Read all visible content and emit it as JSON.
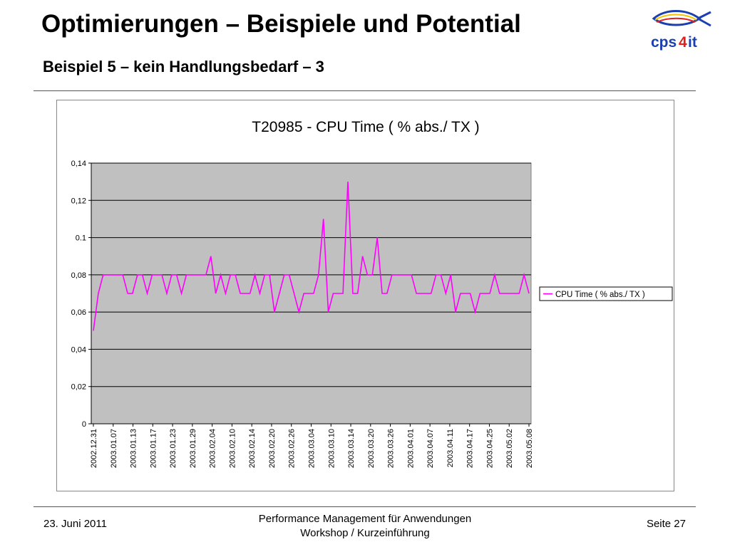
{
  "slide": {
    "title": "Optimierungen – Beispiele und Potential",
    "subtitle": "Beispiel 5 – kein Handlungsbedarf – 3"
  },
  "logo": {
    "text_cps": "cps",
    "text_4": "4",
    "text_it": "it",
    "icon": "fish-icon"
  },
  "footer": {
    "date": "23. Juni 2011",
    "line1": "Performance Management für Anwendungen",
    "line2": "Workshop / Kurzeinführung",
    "page": "Seite 27"
  },
  "colors": {
    "series": "#ff00ff",
    "plot_bg": "#c0c0c0",
    "logo_blue": "#1a3fb0",
    "logo_red": "#e0201c"
  },
  "chart_data": {
    "type": "line",
    "title": "T20985 - CPU Time ( %  abs./ TX )",
    "xlabel": "",
    "ylabel": "",
    "ylim": [
      0,
      0.14
    ],
    "yticks": [
      "0",
      "0,02",
      "0,04",
      "0,06",
      "0,08",
      "0.1",
      "0,12",
      "0,14"
    ],
    "grid": true,
    "legend": "right",
    "xtick_labels": [
      "2002.12.31",
      "2003.01.07",
      "2003.01.13",
      "2003.01.17",
      "2003.01.23",
      "2003.01.29",
      "2003.02.04",
      "2003.02.10",
      "2003.02.14",
      "2003.02.20",
      "2003.02.26",
      "2003.03.04",
      "2003.03.10",
      "2003.03.14",
      "2003.03.20",
      "2003.03.26",
      "2003.04.01",
      "2003.04.07",
      "2003.04.11",
      "2003.04.17",
      "2003.04.25",
      "2003.05.02",
      "2003.05.08"
    ],
    "series": [
      {
        "name": "CPU Time ( % abs./ TX )",
        "values": [
          0.05,
          0.07,
          0.08,
          0.08,
          0.08,
          0.08,
          0.08,
          0.07,
          0.07,
          0.08,
          0.08,
          0.07,
          0.08,
          0.08,
          0.08,
          0.07,
          0.08,
          0.08,
          0.07,
          0.08,
          0.08,
          0.08,
          0.08,
          0.08,
          0.09,
          0.07,
          0.08,
          0.07,
          0.08,
          0.08,
          0.07,
          0.07,
          0.07,
          0.08,
          0.07,
          0.08,
          0.08,
          0.06,
          0.07,
          0.08,
          0.08,
          0.07,
          0.06,
          0.07,
          0.07,
          0.07,
          0.08,
          0.11,
          0.06,
          0.07,
          0.07,
          0.07,
          0.13,
          0.07,
          0.07,
          0.09,
          0.08,
          0.08,
          0.1,
          0.07,
          0.07,
          0.08,
          0.08,
          0.08,
          0.08,
          0.08,
          0.07,
          0.07,
          0.07,
          0.07,
          0.08,
          0.08,
          0.07,
          0.08,
          0.06,
          0.07,
          0.07,
          0.07,
          0.06,
          0.07,
          0.07,
          0.07,
          0.08,
          0.07,
          0.07,
          0.07,
          0.07,
          0.07,
          0.08,
          0.07
        ]
      }
    ]
  }
}
